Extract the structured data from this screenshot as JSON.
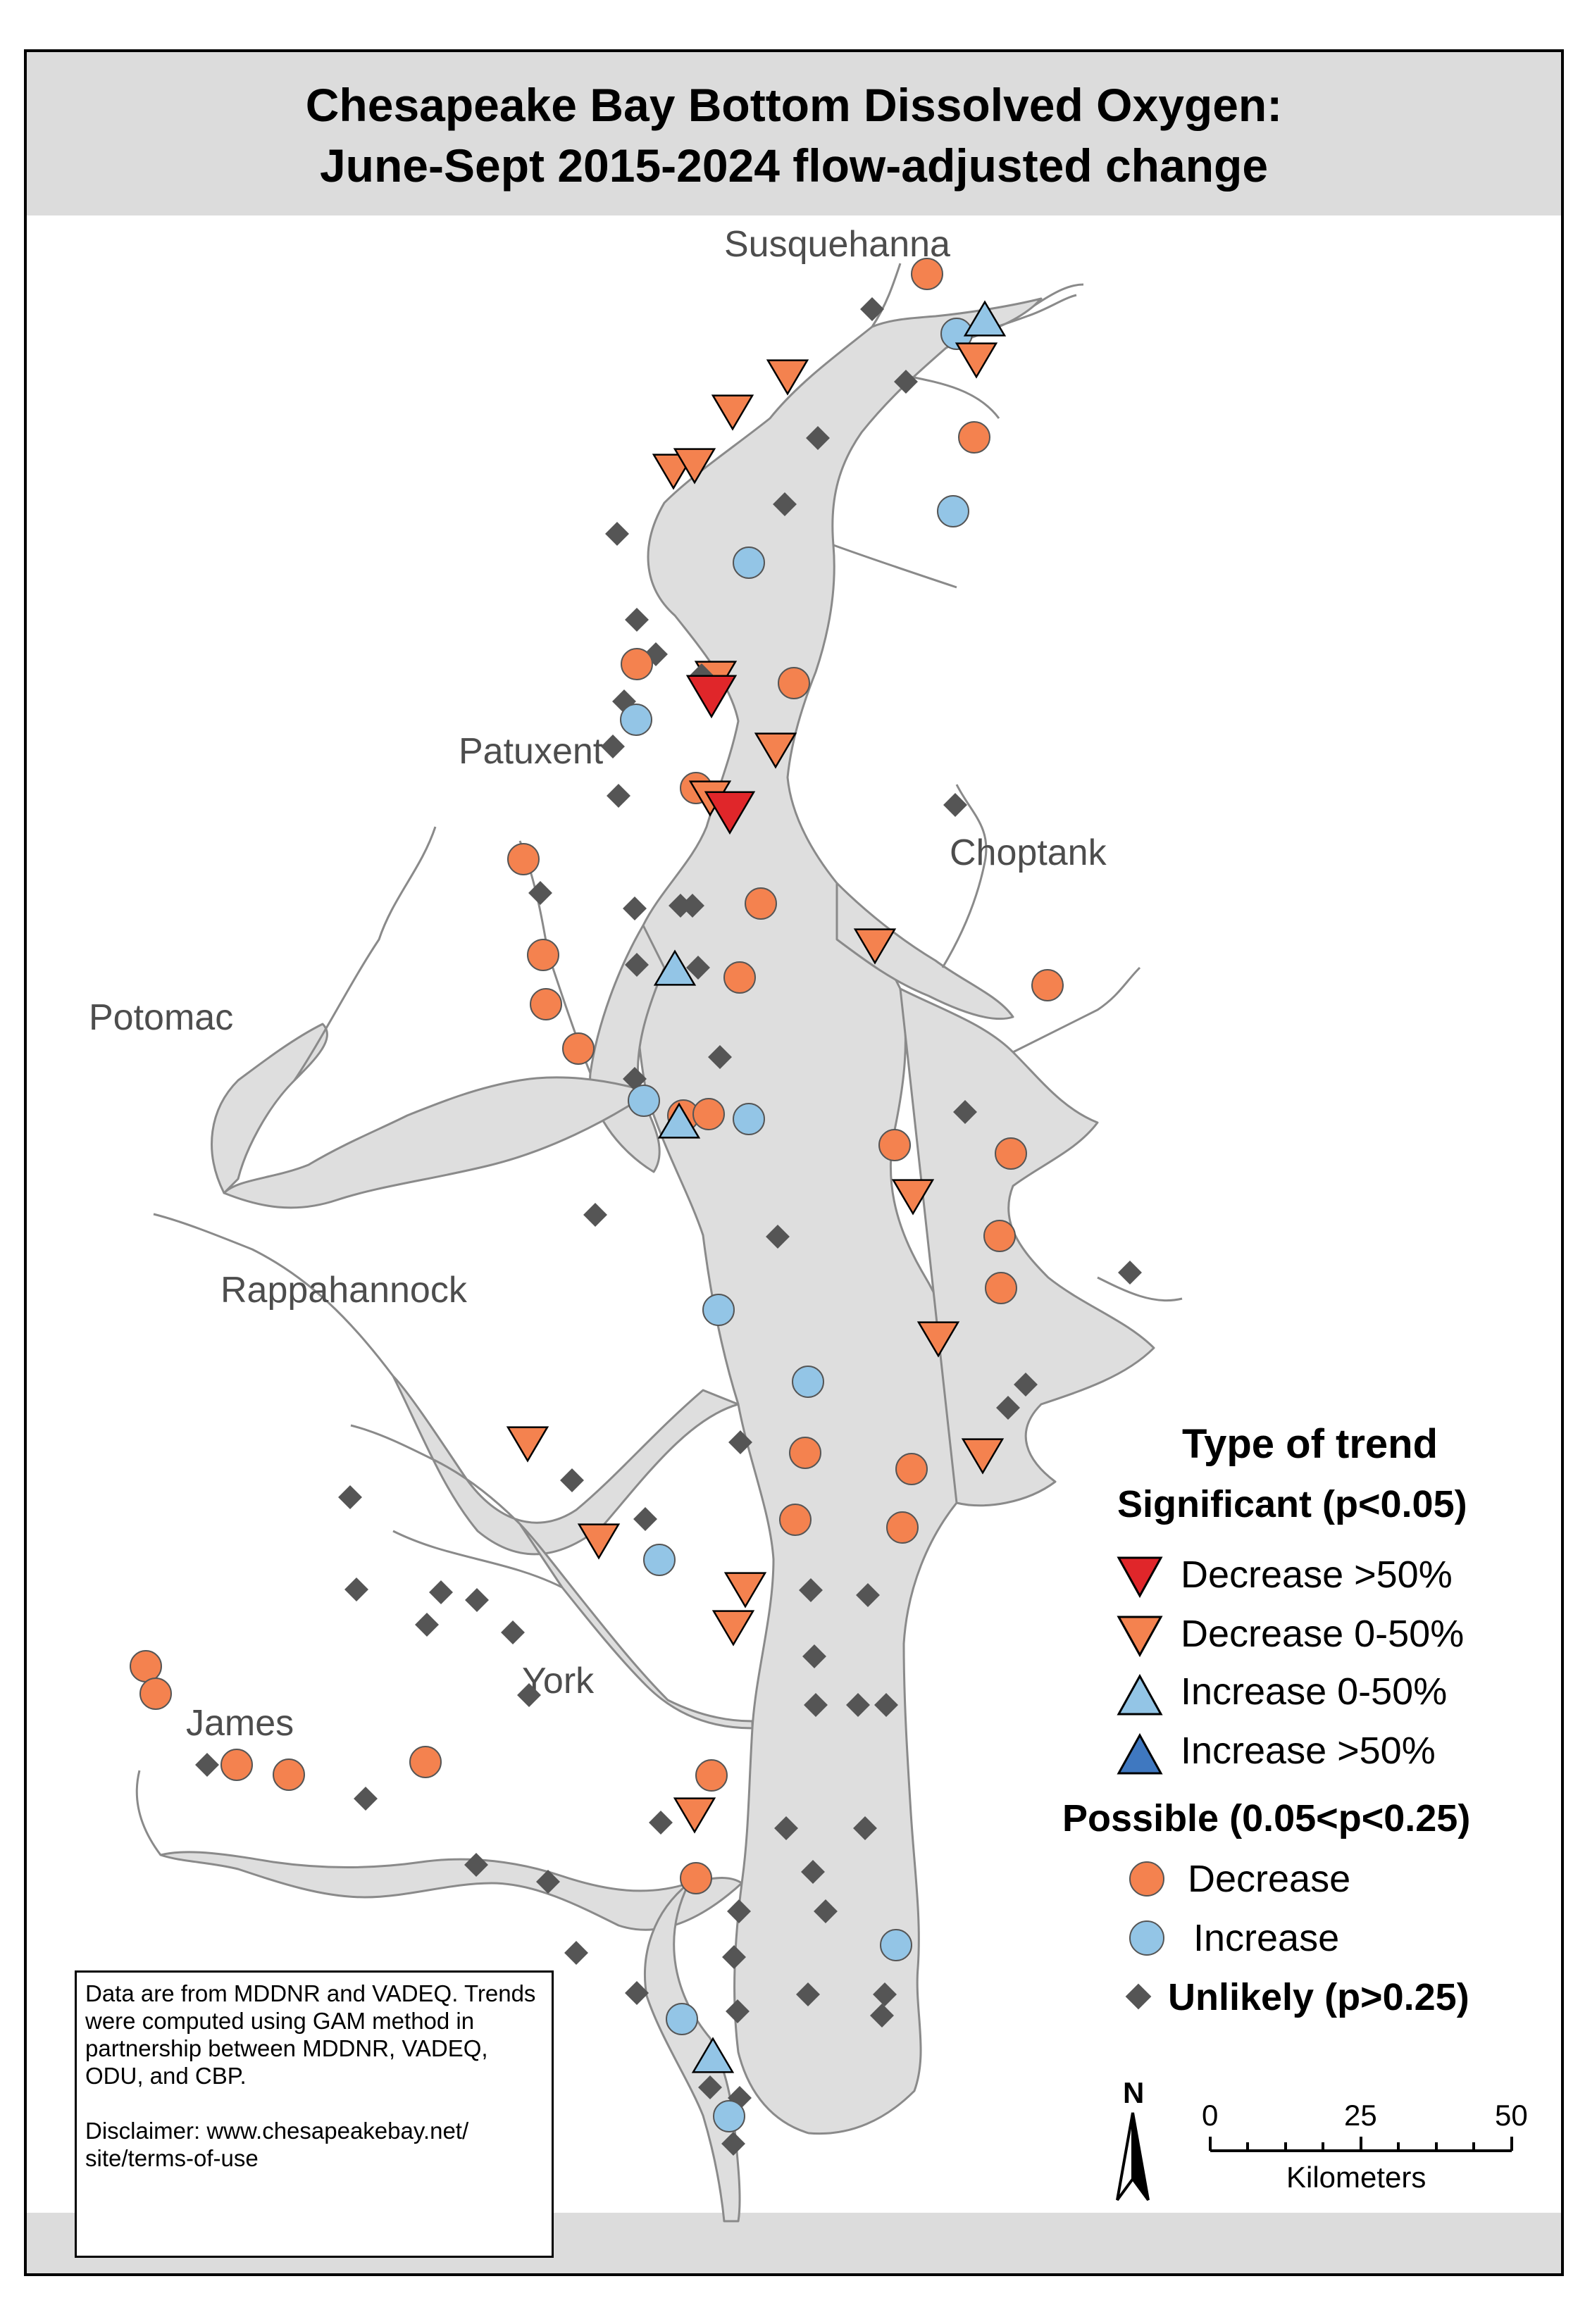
{
  "title": {
    "line1": "Chesapeake Bay Bottom Dissolved Oxygen:",
    "line2": "June-Sept 2015-2024 flow-adjusted change"
  },
  "place_labels": {
    "susquehanna": "Susquehanna",
    "patuxent": "Patuxent",
    "choptank": "Choptank",
    "potomac": "Potomac",
    "rappahannock": "Rappahannock",
    "york": "York",
    "james": "James"
  },
  "legend": {
    "heading": "Type of trend",
    "significant_heading": "Significant (p<0.05)",
    "decrease_gt50": "Decrease >50%",
    "decrease_0_50": "Decrease 0-50%",
    "increase_0_50": "Increase 0-50%",
    "increase_gt50": "Increase >50%",
    "possible_heading": "Possible (0.05<p<0.25)",
    "possible_decrease": "Decrease",
    "possible_increase": "Increase",
    "unlikely": "Unlikely (p>0.25)"
  },
  "colors": {
    "decrease_gt50": "#e0262a",
    "decrease_0_50": "#f4824f",
    "increase_0_50": "#93c5e6",
    "increase_gt50": "#3f78c0",
    "possible_decrease": "#f4824f",
    "possible_increase": "#93c5e6",
    "unlikely": "#555555",
    "water": "#dedede",
    "shoreline": "#8a8a8a",
    "title_band": "#dcdcdc"
  },
  "info_box": {
    "line1": "Data are from MDDNR and VADEQ. Trends were computed using GAM method in partnership between MDDNR, VADEQ, ODU, and CBP.",
    "line2": "Disclaimer: www.chesapeakebay.net/ site/terms-of-use"
  },
  "scale_bar": {
    "north_label": "N",
    "ticks": [
      "0",
      "25",
      "50"
    ],
    "units": "Kilometers"
  }
}
